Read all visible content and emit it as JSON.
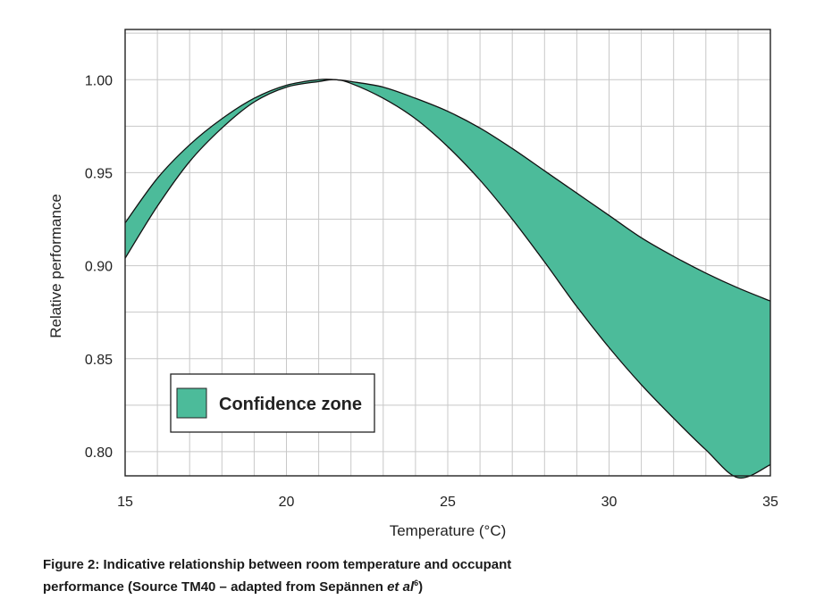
{
  "chart_data": {
    "type": "area",
    "xlabel": "Temperature (°C)",
    "ylabel": "Relative performance",
    "xlim": [
      15,
      35
    ],
    "ylim": [
      0.787,
      1.027
    ],
    "x_ticks": [
      "15",
      "20",
      "25",
      "30",
      "35"
    ],
    "y_ticks": [
      "1.00",
      "0.95",
      "0.90",
      "0.85",
      "0.80"
    ],
    "grid": true,
    "legend_position": "bottom-left",
    "colors": {
      "band": "#4cbb9a",
      "outline": "#111111",
      "grid": "#c8c8c8"
    },
    "series": [
      {
        "name": "Confidence zone",
        "x": [
          15,
          16,
          17,
          18,
          19,
          20,
          21,
          21.5,
          22,
          23,
          24,
          25,
          26,
          27,
          28,
          29,
          30,
          31,
          32,
          33,
          34,
          35
        ],
        "upper": [
          0.923,
          0.947,
          0.965,
          0.979,
          0.99,
          0.997,
          1.0,
          1.0,
          0.999,
          0.996,
          0.99,
          0.983,
          0.974,
          0.963,
          0.951,
          0.939,
          0.927,
          0.915,
          0.905,
          0.896,
          0.888,
          0.881
        ],
        "lower": [
          0.904,
          0.932,
          0.956,
          0.974,
          0.988,
          0.996,
          0.999,
          1.0,
          0.998,
          0.99,
          0.979,
          0.964,
          0.946,
          0.925,
          0.902,
          0.878,
          0.856,
          0.836,
          0.818,
          0.801,
          0.786,
          0.793
        ]
      }
    ]
  },
  "caption": {
    "main": "Figure 2: Indicative relationship between room temperature and occupant performance (Source TM40 – adapted from Sepännen ",
    "italic": "et al",
    "sup": "6",
    "tail": ")"
  }
}
